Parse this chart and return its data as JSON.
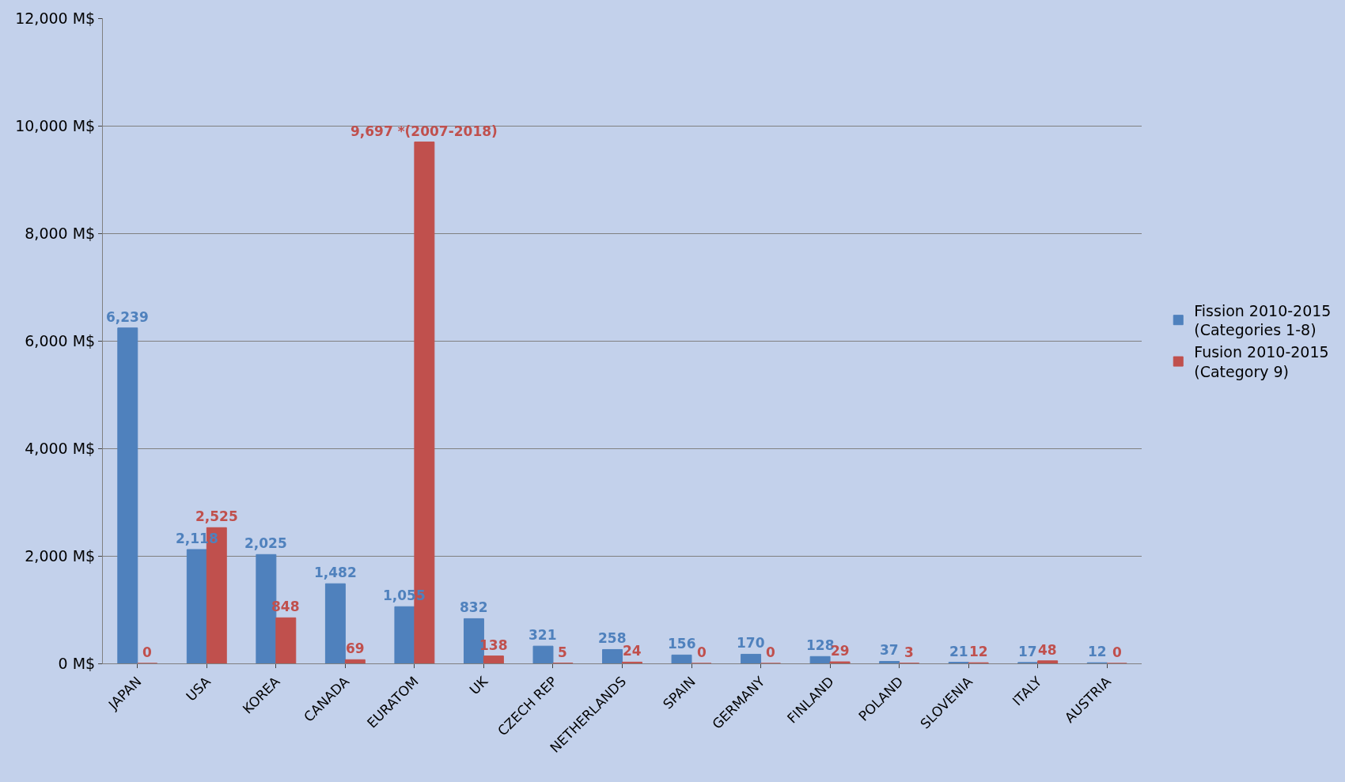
{
  "chart_data": {
    "type": "bar",
    "categories": [
      "JAPAN",
      "USA",
      "KOREA",
      "CANADA",
      "EURATOM",
      "UK",
      "CZECH REP",
      "NETHERLANDS",
      "SPAIN",
      "GERMANY",
      "FINLAND",
      "POLAND",
      "SLOVENIA",
      "ITALY",
      "AUSTRIA"
    ],
    "series": [
      {
        "name": "Fission 2010-2015\n(Categories 1-8)",
        "color": "#4f81bd",
        "values": [
          6239,
          2118,
          2025,
          1482,
          1055,
          832,
          321,
          258,
          156,
          170,
          128,
          37,
          21,
          17,
          12
        ],
        "value_labels": [
          "6,239",
          "2,118",
          "2,025",
          "1,482",
          "1,055",
          "832",
          "321",
          "258",
          "156",
          "170",
          "128",
          "37",
          "21",
          "17",
          "12"
        ]
      },
      {
        "name": "Fusion 2010-2015\n(Category 9)",
        "color": "#c0504d",
        "values": [
          0,
          2525,
          848,
          69,
          9697,
          138,
          5,
          24,
          0,
          0,
          29,
          3,
          12,
          48,
          0
        ],
        "value_labels": [
          "0",
          "2,525",
          "848",
          "69",
          "9,697 *(2007-2018)",
          "138",
          "5",
          "24",
          "0",
          "0",
          "29",
          "3",
          "12",
          "48",
          "0"
        ]
      }
    ],
    "ylim": [
      0,
      12000
    ],
    "yticks": [
      {
        "value": 0,
        "label": "0 M$"
      },
      {
        "value": 2000,
        "label": "2,000 M$"
      },
      {
        "value": 4000,
        "label": "4,000 M$"
      },
      {
        "value": 6000,
        "label": "6,000 M$"
      },
      {
        "value": 8000,
        "label": "8,000 M$"
      },
      {
        "value": 10000,
        "label": "10,000 M$"
      },
      {
        "value": 12000,
        "label": "12,000 M$"
      }
    ],
    "grid": "y",
    "legend": "right"
  }
}
